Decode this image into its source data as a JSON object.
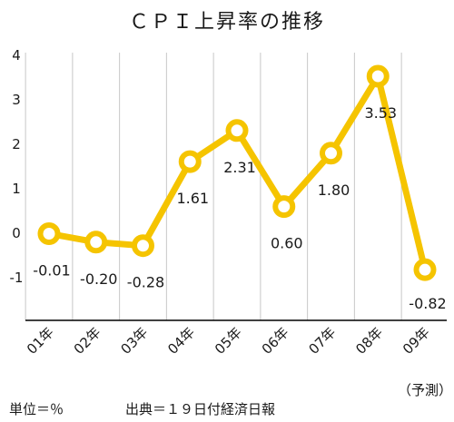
{
  "chart_data": {
    "type": "line",
    "title": "ＣＰＩ上昇率の推移",
    "categories": [
      "01年",
      "02年",
      "03年",
      "04年",
      "05年",
      "06年",
      "07年",
      "08年",
      "09年"
    ],
    "category_note": "（予測）",
    "series": [
      {
        "values": [
          -0.01,
          -0.2,
          -0.28,
          1.61,
          2.31,
          0.6,
          1.8,
          3.53,
          -0.82
        ]
      }
    ],
    "data_labels": [
      "-0.01",
      "-0.20",
      "-0.28",
      "1.61",
      "2.31",
      "0.60",
      "1.80",
      "3.53",
      "-0.82"
    ],
    "y_ticks": [
      "4",
      "3",
      "2",
      "1",
      "0",
      "-1"
    ],
    "ylim": [
      -2,
      4
    ],
    "grid": "vertical",
    "line_color": "#f5c400",
    "marker_fill": "#ffffff",
    "xlabel": "",
    "ylabel": ""
  },
  "footer": {
    "unit": "単位＝％",
    "source": "出典＝１９日付経済日報"
  }
}
